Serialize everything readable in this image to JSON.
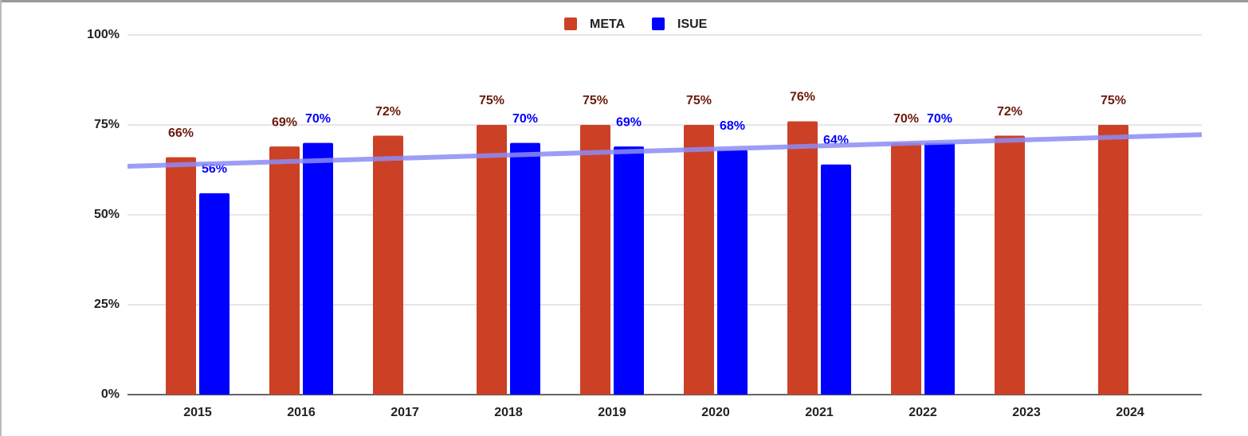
{
  "chart_data": {
    "type": "bar",
    "categories": [
      "2015",
      "2016",
      "2017",
      "2018",
      "2019",
      "2020",
      "2021",
      "2022",
      "2023",
      "2024"
    ],
    "series": [
      {
        "name": "META",
        "color": "#cc4125",
        "label_color": "#6b1a0a",
        "values": [
          66,
          69,
          72,
          75,
          75,
          75,
          76,
          70,
          72,
          75
        ],
        "value_labels": [
          "66%",
          "69%",
          "72%",
          "75%",
          "75%",
          "75%",
          "76%",
          "70%",
          "72%",
          "75%"
        ]
      },
      {
        "name": "ISUE",
        "color": "#0000ff",
        "label_color": "#0000ff",
        "values": [
          56,
          70,
          null,
          70,
          69,
          68,
          64,
          70,
          null,
          null
        ],
        "value_labels": [
          "56%",
          "70%",
          null,
          "70%",
          "69%",
          "68%",
          "64%",
          "70%",
          null,
          null
        ]
      }
    ],
    "trendline": {
      "color": "#8c8cf5",
      "values": [
        63.5,
        72.3
      ]
    },
    "ylim": [
      0,
      100
    ],
    "yticks": [
      {
        "value": 0,
        "label": "0%"
      },
      {
        "value": 25,
        "label": "25%"
      },
      {
        "value": 50,
        "label": "50%"
      },
      {
        "value": 75,
        "label": "75%"
      },
      {
        "value": 100,
        "label": "100%"
      }
    ],
    "grid": true,
    "legend": "top"
  }
}
